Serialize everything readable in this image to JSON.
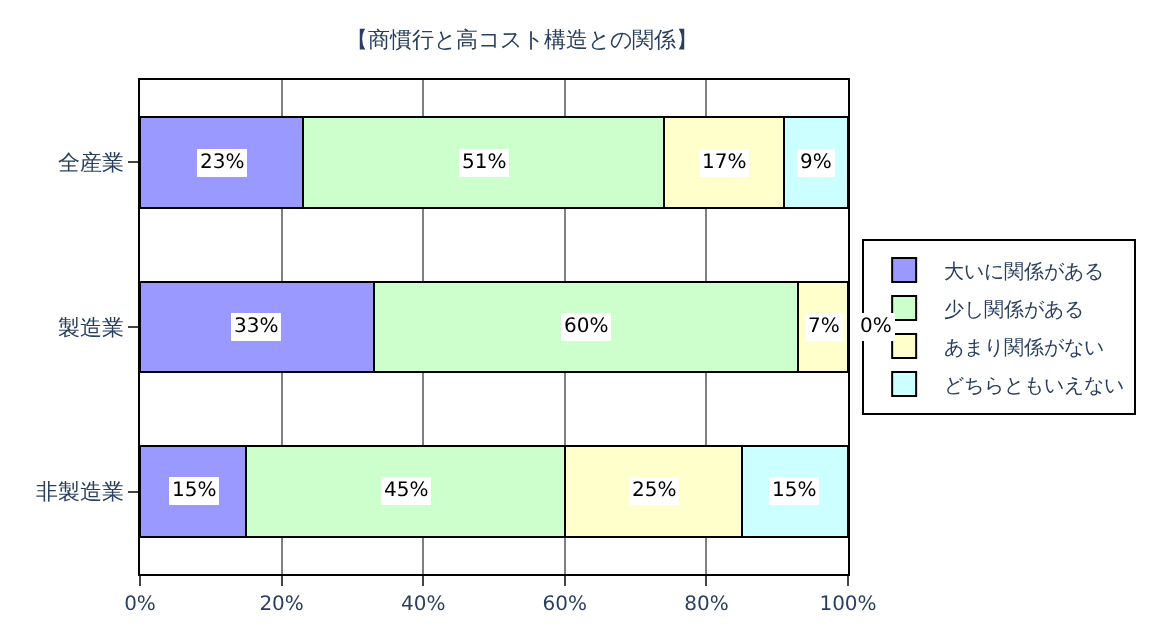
{
  "chart_data": {
    "type": "bar",
    "orientation": "horizontal",
    "stacked": true,
    "title": "【商慣行と高コスト構造との関係】",
    "categories": [
      "全産業",
      "製造業",
      "非製造業"
    ],
    "series": [
      {
        "name": "大いに関係がある",
        "color": "#9999ff",
        "values": [
          23,
          33,
          15
        ],
        "value_labels": [
          "23%",
          "33%",
          "15%"
        ]
      },
      {
        "name": "少し関係がある",
        "color": "#ccffcc",
        "values": [
          51,
          60,
          45
        ],
        "value_labels": [
          "51%",
          "60%",
          "45%"
        ]
      },
      {
        "name": "あまり関係がない",
        "color": "#ffffcc",
        "values": [
          17,
          7,
          25
        ],
        "value_labels": [
          "17%",
          "7%",
          "25%"
        ]
      },
      {
        "name": "どちらともいえない",
        "color": "#ccffff",
        "values": [
          9,
          0,
          15
        ],
        "value_labels": [
          "9%",
          "0%",
          "15%"
        ]
      }
    ],
    "xlim": [
      0,
      100
    ],
    "xticks": [
      {
        "value": 0,
        "label": "0%"
      },
      {
        "value": 20,
        "label": "20%"
      },
      {
        "value": 40,
        "label": "40%"
      },
      {
        "value": 60,
        "label": "60%"
      },
      {
        "value": 80,
        "label": "80%"
      },
      {
        "value": 100,
        "label": "100%"
      }
    ],
    "grid": "x",
    "legend": "right"
  }
}
